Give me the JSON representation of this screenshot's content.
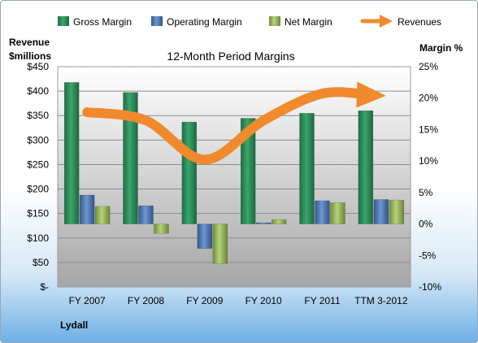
{
  "chart_data": {
    "type": "bar",
    "title": "12-Month Period Margins",
    "company": "Lydall",
    "categories": [
      "FY 2007",
      "FY 2008",
      "FY 2009",
      "FY 2010",
      "FY 2011",
      "TTM 3-2012"
    ],
    "left_axis": {
      "label_line1": "Revenue",
      "label_line2": "$millions",
      "ylim": [
        0,
        450
      ],
      "ticks": [
        0,
        50,
        100,
        150,
        200,
        250,
        300,
        350,
        400,
        450
      ],
      "tick_labels": [
        "$-",
        "$50",
        "$100",
        "$150",
        "$200",
        "$250",
        "$300",
        "$350",
        "$400",
        "$450"
      ]
    },
    "right_axis": {
      "label": "Margin %",
      "ylim": [
        -10,
        25
      ],
      "ticks": [
        -10,
        -5,
        0,
        5,
        10,
        15,
        20,
        25
      ],
      "tick_labels": [
        "-10%",
        "-5%",
        "0%",
        "5%",
        "10%",
        "15%",
        "20%",
        "25%"
      ]
    },
    "series": [
      {
        "name": "Gross Margin",
        "axis": "right",
        "color": "#2e8b57",
        "values": [
          22.5,
          20.9,
          16.2,
          16.8,
          17.6,
          18.0
        ]
      },
      {
        "name": "Operating Margin",
        "axis": "right",
        "color": "#4f81bd",
        "values": [
          4.6,
          2.9,
          -3.9,
          0.2,
          3.7,
          3.9
        ]
      },
      {
        "name": "Net Margin",
        "axis": "right",
        "color": "#9bbb59",
        "values": [
          2.8,
          -1.5,
          -6.3,
          0.7,
          3.4,
          3.8
        ]
      },
      {
        "name": "Revenues",
        "axis": "left",
        "color": "#f08a2c",
        "type": "line",
        "values": [
          357,
          340,
          260,
          340,
          395,
          391
        ]
      }
    ],
    "grid": true,
    "legend_position": "top"
  }
}
